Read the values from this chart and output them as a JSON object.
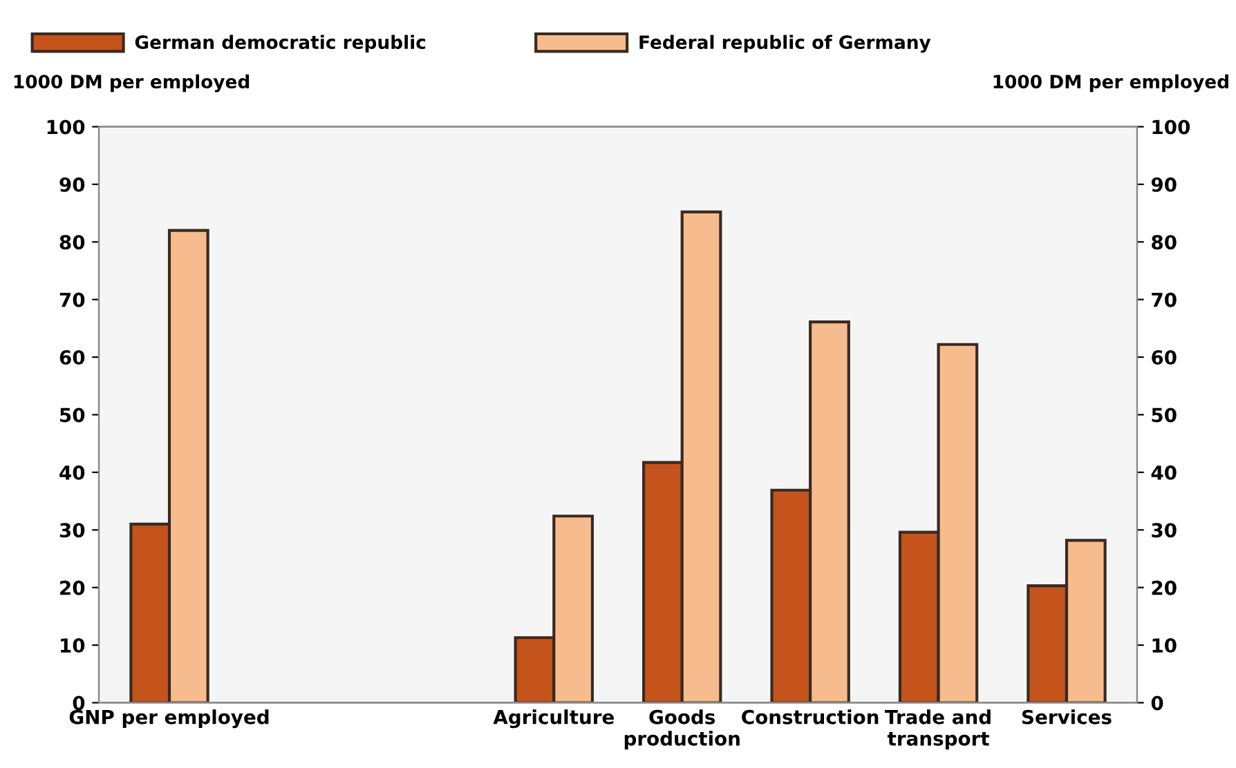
{
  "chart_data": {
    "type": "bar",
    "categories": [
      "GNP per employed",
      null,
      null,
      "Agriculture",
      "Goods\nproduction",
      "Construction",
      "Trade and\ntransport",
      "Services"
    ],
    "series": [
      {
        "name": "German democratic republic",
        "color": "#c4531c",
        "values": [
          31,
          null,
          null,
          11.3,
          41.7,
          36.9,
          29.6,
          20.3
        ]
      },
      {
        "name": "Federal republic of Germany",
        "color": "#f7bc8e",
        "values": [
          82,
          null,
          null,
          32.4,
          85.2,
          66.1,
          62.2,
          28.2
        ]
      }
    ],
    "ylabel": "1000 DM per employed",
    "y2label": "1000 DM per employed",
    "ylim": [
      0,
      100
    ],
    "yticks": [
      0,
      10,
      20,
      30,
      40,
      50,
      60,
      70,
      80,
      90,
      100
    ],
    "y2lim": [
      0,
      100
    ],
    "y2ticks": [
      0,
      10,
      20,
      30,
      40,
      50,
      60,
      70,
      80,
      90,
      100
    ],
    "legend": "top",
    "grid": false
  }
}
